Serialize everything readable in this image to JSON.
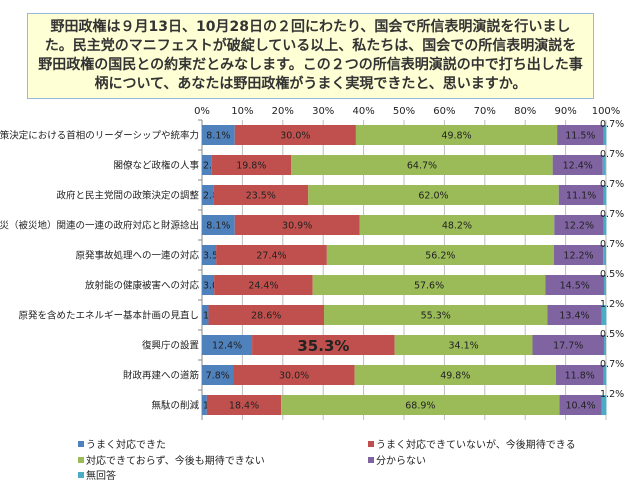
{
  "question": "野田政権は９月13日、10月28日の２回にわたり、国会で所信表明演説を行いました。民主党のマニフェストが破綻している以上、私たちは、国会での所信表明演説を野田政権の国民との約束だとみなします。この２つの所信表明演説の中で打ち出した事柄について、あなたは野田政権がうまく実現できたと、思いますか。",
  "chart_data": {
    "type": "bar",
    "orientation": "horizontal",
    "stacked": "percent",
    "xlim": [
      0,
      100
    ],
    "x_ticks": [
      "0%",
      "10%",
      "20%",
      "30%",
      "40%",
      "50%",
      "60%",
      "70%",
      "80%",
      "90%",
      "100%"
    ],
    "grid": "vertical",
    "legend_position": "bottom",
    "categories": [
      "政策決定における首相のリーダーシップや統率力",
      "閣僚など政権の人事",
      "政府と民主党間の政策決定の調整",
      "震災（被災地）関連の一連の政府対応と財源捻出",
      "原発事故処理への一連の対応",
      "放射能の健康被害への対応",
      "原発を含めたエネルギー基本計画の見直し",
      "復興庁の設置",
      "財政再建への道筋",
      "無駄の削減"
    ],
    "series": [
      {
        "name": "うまく対応できた",
        "color": "#4f81bd",
        "values": [
          8.1,
          2.3,
          2.8,
          8.1,
          3.5,
          3.0,
          1.6,
          12.4,
          7.8,
          1.2
        ]
      },
      {
        "name": "うまく対応できていないが、今後期待できる",
        "color": "#c0504d",
        "values": [
          30.0,
          19.8,
          23.5,
          30.9,
          27.4,
          24.4,
          28.6,
          35.3,
          30.0,
          18.4
        ]
      },
      {
        "name": "対応できておらず、今後も期待できない",
        "color": "#9bbb59",
        "values": [
          49.8,
          64.7,
          62.0,
          48.2,
          56.2,
          57.6,
          55.3,
          34.1,
          49.8,
          68.9
        ]
      },
      {
        "name": "分からない",
        "color": "#8064a2",
        "values": [
          11.5,
          12.4,
          11.1,
          12.2,
          12.2,
          14.5,
          13.4,
          17.7,
          11.8,
          10.4
        ]
      },
      {
        "name": "無回答",
        "color": "#4bacc6",
        "values": [
          0.7,
          0.7,
          0.7,
          0.7,
          0.7,
          0.5,
          1.2,
          0.5,
          0.7,
          1.2
        ]
      }
    ],
    "highlight": {
      "category_index": 7,
      "series_index": 1,
      "value": 35.3
    }
  }
}
